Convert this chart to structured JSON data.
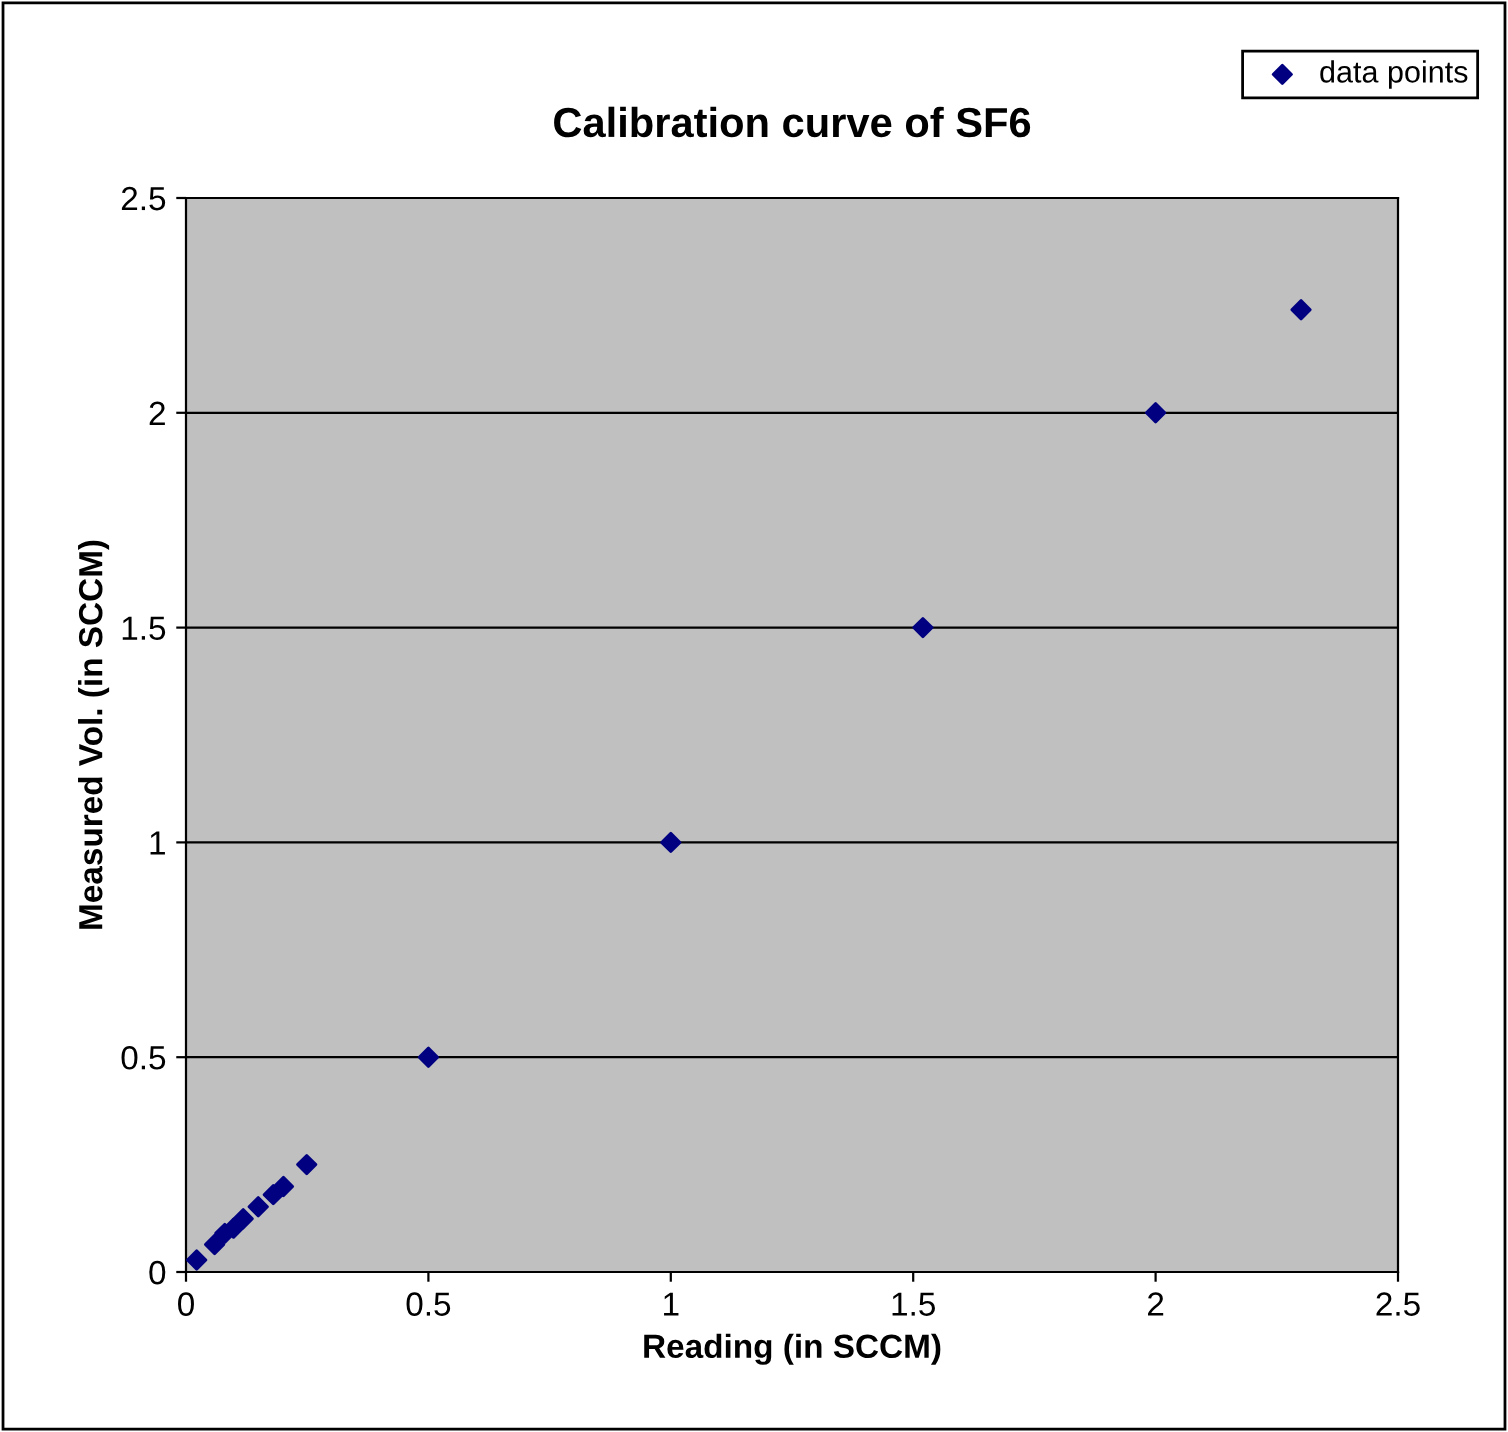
{
  "chart_data": {
    "type": "scatter",
    "title": "Calibration curve of SF6",
    "xlabel": "Reading (in SCCM)",
    "ylabel": "Measured Vol. (in SCCM)",
    "series": [
      {
        "name": "data points",
        "color": "#000080",
        "x": [
          0.022,
          0.059,
          0.08,
          0.098,
          0.118,
          0.149,
          0.18,
          0.201,
          0.249,
          0.5,
          1.0,
          1.52,
          2.0,
          2.3
        ],
        "values": [
          0.028,
          0.064,
          0.09,
          0.102,
          0.124,
          0.152,
          0.18,
          0.199,
          0.25,
          0.5,
          1.0,
          1.5,
          2.0,
          2.24
        ]
      }
    ],
    "xlim": [
      0,
      2.5
    ],
    "xticks": [
      0,
      0.5,
      1,
      1.5,
      2,
      2.5
    ],
    "ylim": [
      0,
      2.5
    ],
    "yticks": [
      0,
      0.5,
      1,
      1.5,
      2,
      2.5
    ],
    "grid": "y",
    "legend": "top right",
    "marker": "diamond"
  }
}
